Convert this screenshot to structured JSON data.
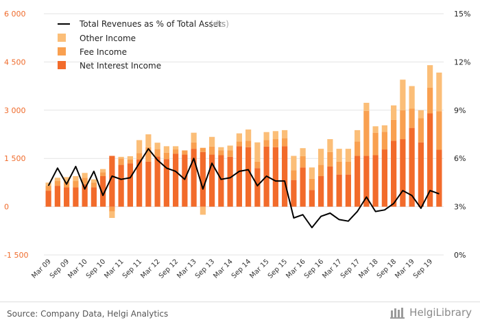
{
  "chart_data": {
    "type": "bar",
    "stacked": true,
    "title": "",
    "xlabel": "",
    "ylabel": "",
    "ylim": [
      -1500,
      6000
    ],
    "yticks": [
      -1500,
      0,
      1500,
      3000,
      4500,
      6000
    ],
    "ytick_labels": [
      "-1 500",
      "0",
      "1 500",
      "3 000",
      "4 500",
      "6 000"
    ],
    "y2lim": [
      0,
      15
    ],
    "y2ticks": [
      0,
      3,
      6,
      9,
      12,
      15
    ],
    "y2tick_labels": [
      "0%",
      "3%",
      "6%",
      "9%",
      "12%",
      "15%"
    ],
    "legend_position": "top-left",
    "categories": [
      "Mar 09",
      "Jun 09",
      "Sep 09",
      "Dec 09",
      "Mar 10",
      "Jun 10",
      "Sep 10",
      "Dec 10",
      "Mar 11",
      "Jun 11",
      "Sep 11",
      "Dec 11",
      "Mar 12",
      "Jun 12",
      "Sep 12",
      "Dec 12",
      "Mar 13",
      "Jun 13",
      "Sep 13",
      "Dec 13",
      "Mar 14",
      "Jun 14",
      "Sep 14",
      "Dec 14",
      "Mar 15",
      "Jun 15",
      "Sep 15",
      "Dec 15",
      "Mar 16",
      "Jun 16",
      "Sep 16",
      "Dec 16",
      "Mar 17",
      "Jun 17",
      "Sep 17",
      "Dec 17",
      "Mar 18",
      "Jun 18",
      "Sep 18",
      "Dec 18",
      "Mar 19",
      "Jun 19",
      "Sep 19",
      "Dec 19"
    ],
    "xtick_labels": [
      "Mar 09",
      "Sep 09",
      "Mar 10",
      "Sep 10",
      "Mar 11",
      "Sep 11",
      "Mar 12",
      "Sep 12",
      "Mar 13",
      "Sep 13",
      "Mar 14",
      "Sep 14",
      "Mar 15",
      "Sep 15",
      "Mar 16",
      "Sep 16",
      "Mar 17",
      "Sep 17",
      "Mar 18",
      "Sep 18",
      "Mar 19",
      "Sep 19"
    ],
    "series": [
      {
        "name": "Net Interest Income",
        "kind": "bar",
        "axis": "left",
        "color": "#f26b2b",
        "values": [
          500,
          650,
          600,
          600,
          700,
          600,
          950,
          1580,
          1300,
          1350,
          1470,
          1400,
          1560,
          1480,
          1650,
          1620,
          1800,
          1700,
          1620,
          1600,
          1550,
          1880,
          1850,
          1200,
          1870,
          1850,
          1880,
          830,
          1220,
          520,
          950,
          1250,
          1000,
          1000,
          1580,
          1580,
          1600,
          1780,
          2050,
          2100,
          2450,
          2000,
          2900,
          1770
        ]
      },
      {
        "name": "Fee Income",
        "kind": "bar",
        "axis": "left",
        "color": "#f9a050",
        "values": [
          150,
          150,
          170,
          200,
          200,
          150,
          120,
          -150,
          200,
          120,
          200,
          450,
          230,
          200,
          130,
          130,
          200,
          130,
          250,
          150,
          200,
          150,
          200,
          200,
          200,
          250,
          250,
          300,
          350,
          350,
          350,
          450,
          400,
          400,
          450,
          1400,
          700,
          550,
          650,
          900,
          600,
          750,
          800,
          1200
        ]
      },
      {
        "name": "Other Income",
        "kind": "bar",
        "axis": "left",
        "color": "#fbbe78",
        "values": [
          100,
          100,
          150,
          150,
          150,
          100,
          100,
          -200,
          50,
          100,
          400,
          400,
          200,
          200,
          100,
          0,
          300,
          -250,
          300,
          100,
          150,
          250,
          350,
          600,
          250,
          250,
          250,
          450,
          250,
          350,
          500,
          400,
          400,
          400,
          350,
          250,
          200,
          200,
          450,
          950,
          700,
          250,
          700,
          1200
        ]
      },
      {
        "name": "Total Revenues as % of Total Assets",
        "note": "(rhs)",
        "kind": "line",
        "axis": "right",
        "color": "#000000",
        "values": [
          4.3,
          5.4,
          4.4,
          5.5,
          4.1,
          5.2,
          3.7,
          4.9,
          4.7,
          4.8,
          5.7,
          6.6,
          5.9,
          5.4,
          5.2,
          4.7,
          6.0,
          4.1,
          5.7,
          4.7,
          4.8,
          5.2,
          5.3,
          4.3,
          4.9,
          4.6,
          4.6,
          2.3,
          2.5,
          1.7,
          2.4,
          2.6,
          2.2,
          2.1,
          2.7,
          3.6,
          2.7,
          2.8,
          3.2,
          4.0,
          3.7,
          2.9,
          4.0,
          3.8
        ]
      }
    ]
  },
  "footer": {
    "source": "Source: Company Data, Helgi Analytics",
    "brand": "HelgiLibrary"
  }
}
